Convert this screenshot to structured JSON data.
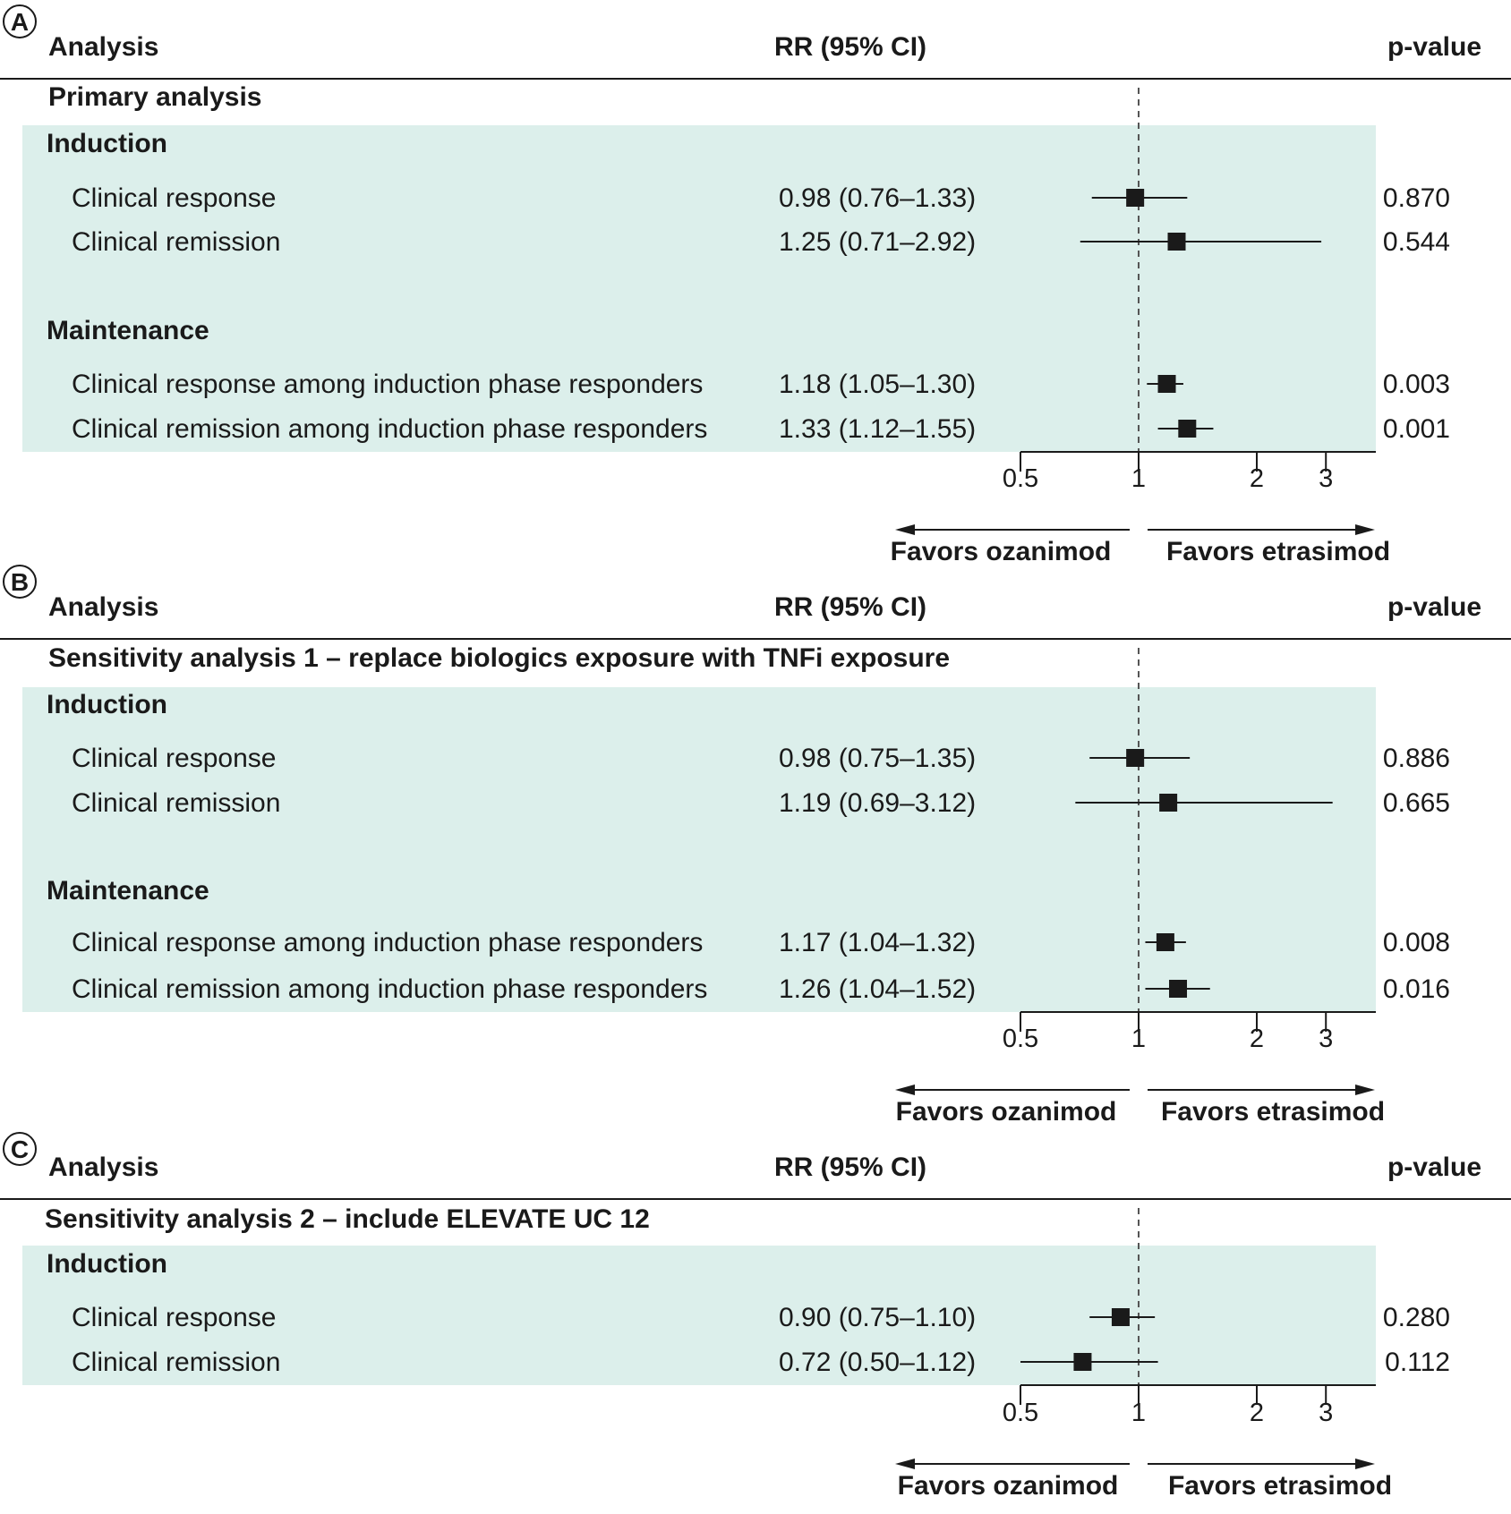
{
  "columns": {
    "analysis": "Analysis",
    "estimate": "RR (95% CI)",
    "pvalue": "p-value"
  },
  "directions": {
    "left": "Favors ozanimod",
    "right": "Favors etrasimod"
  },
  "colors": {
    "band": "#dcefeb",
    "marker": "#1a1a1a",
    "line": "#1a1a1a"
  },
  "chart_data": [
    {
      "type": "forest",
      "panel": "A",
      "section": "Primary analysis",
      "xscale": "log",
      "xticks": [
        "0.5",
        "1",
        "2",
        "3"
      ],
      "reference_line": 1,
      "groups": [
        {
          "name": "Induction",
          "rows": [
            {
              "label": "Clinical response",
              "text": "0.98 (0.76–1.33)",
              "est": 0.98,
              "lo": 0.76,
              "hi": 1.33,
              "p": "0.870"
            },
            {
              "label": "Clinical remission",
              "text": "1.25 (0.71–2.92)",
              "est": 1.25,
              "lo": 0.71,
              "hi": 2.92,
              "p": "0.544"
            }
          ]
        },
        {
          "name": "Maintenance",
          "rows": [
            {
              "label": "Clinical response among induction phase responders",
              "text": "1.18 (1.05–1.30)",
              "est": 1.18,
              "lo": 1.05,
              "hi": 1.3,
              "p": "0.003"
            },
            {
              "label": "Clinical remission among induction phase responders",
              "text": "1.33 (1.12–1.55)",
              "est": 1.33,
              "lo": 1.12,
              "hi": 1.55,
              "p": "0.001"
            }
          ]
        }
      ]
    },
    {
      "type": "forest",
      "panel": "B",
      "section": "Sensitivity analysis 1 – replace biologics exposure with TNFi exposure",
      "xscale": "log",
      "xticks": [
        "0.5",
        "1",
        "2",
        "3"
      ],
      "reference_line": 1,
      "groups": [
        {
          "name": "Induction",
          "rows": [
            {
              "label": "Clinical response",
              "text": "0.98 (0.75–1.35)",
              "est": 0.98,
              "lo": 0.75,
              "hi": 1.35,
              "p": "0.886"
            },
            {
              "label": "Clinical remission",
              "text": "1.19 (0.69–3.12)",
              "est": 1.19,
              "lo": 0.69,
              "hi": 3.12,
              "p": "0.665"
            }
          ]
        },
        {
          "name": "Maintenance",
          "rows": [
            {
              "label": "Clinical response among induction phase responders",
              "text": "1.17 (1.04–1.32)",
              "est": 1.17,
              "lo": 1.04,
              "hi": 1.32,
              "p": "0.008"
            },
            {
              "label": "Clinical remission among induction phase responders",
              "text": "1.26 (1.04–1.52)",
              "est": 1.26,
              "lo": 1.04,
              "hi": 1.52,
              "p": "0.016"
            }
          ]
        }
      ]
    },
    {
      "type": "forest",
      "panel": "C",
      "section": "Sensitivity analysis 2 – include ELEVATE UC 12",
      "xscale": "log",
      "xticks": [
        "0.5",
        "1",
        "2",
        "3"
      ],
      "reference_line": 1,
      "groups": [
        {
          "name": "Induction",
          "rows": [
            {
              "label": "Clinical response",
              "text": "0.90 (0.75–1.10)",
              "est": 0.9,
              "lo": 0.75,
              "hi": 1.1,
              "p": "0.280"
            },
            {
              "label": "Clinical remission",
              "text": "0.72 (0.50–1.12)",
              "est": 0.72,
              "lo": 0.5,
              "hi": 1.12,
              "p": "0.112"
            }
          ]
        }
      ]
    }
  ]
}
